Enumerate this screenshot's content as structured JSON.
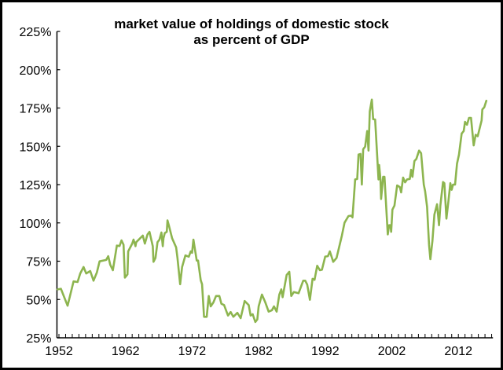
{
  "chart_data": {
    "type": "line",
    "title": "market value of holdings of domestic stock",
    "subtitle": "as percent of GDP",
    "xlabel": "",
    "ylabel": "",
    "xlim": [
      1951.7,
      2017.2
    ],
    "ylim": [
      25,
      225
    ],
    "x_ticks": [
      "1952",
      "1962",
      "1972",
      "1982",
      "1992",
      "2002",
      "2012"
    ],
    "y_ticks": [
      "25%",
      "50%",
      "75%",
      "100%",
      "125%",
      "150%",
      "175%",
      "200%",
      "225%"
    ],
    "grid": false,
    "line_color": "#8db54f",
    "series": [
      {
        "points": [
          [
            1951.8,
            56.6
          ],
          [
            1952.3,
            57.0
          ],
          [
            1953.3,
            45.9
          ],
          [
            1954.2,
            61.8
          ],
          [
            1954.8,
            61.4
          ],
          [
            1955.2,
            67.0
          ],
          [
            1955.7,
            71.2
          ],
          [
            1956.1,
            67.0
          ],
          [
            1956.7,
            68.6
          ],
          [
            1957.2,
            62.3
          ],
          [
            1957.7,
            67.7
          ],
          [
            1958.1,
            74.9
          ],
          [
            1959.1,
            75.8
          ],
          [
            1959.4,
            78.3
          ],
          [
            1959.7,
            72.8
          ],
          [
            1960.1,
            69.1
          ],
          [
            1960.7,
            85.2
          ],
          [
            1961.1,
            84.9
          ],
          [
            1961.4,
            88.6
          ],
          [
            1961.7,
            85.7
          ],
          [
            1961.9,
            64.3
          ],
          [
            1962.3,
            66.4
          ],
          [
            1962.4,
            81.4
          ],
          [
            1963.0,
            86.5
          ],
          [
            1963.2,
            89.1
          ],
          [
            1963.5,
            84.8
          ],
          [
            1963.6,
            87.4
          ],
          [
            1964.2,
            90.0
          ],
          [
            1964.6,
            91.7
          ],
          [
            1964.9,
            86.5
          ],
          [
            1965.3,
            92.5
          ],
          [
            1965.6,
            94.2
          ],
          [
            1966.1,
            84.8
          ],
          [
            1966.2,
            74.6
          ],
          [
            1966.5,
            77.1
          ],
          [
            1966.8,
            87.4
          ],
          [
            1967.1,
            89.1
          ],
          [
            1967.4,
            93.7
          ],
          [
            1967.6,
            84.8
          ],
          [
            1967.7,
            90.0
          ],
          [
            1967.9,
            93.4
          ],
          [
            1968.2,
            94.2
          ],
          [
            1968.3,
            101.6
          ],
          [
            1968.5,
            98.5
          ],
          [
            1969.0,
            90.0
          ],
          [
            1969.6,
            84.0
          ],
          [
            1969.8,
            77.1
          ],
          [
            1970.2,
            60.0
          ],
          [
            1970.5,
            71.2
          ],
          [
            1971.0,
            78.8
          ],
          [
            1971.5,
            77.9
          ],
          [
            1971.8,
            81.4
          ],
          [
            1972.0,
            80.5
          ],
          [
            1972.2,
            89.1
          ],
          [
            1972.7,
            75.4
          ],
          [
            1972.9,
            75.4
          ],
          [
            1973.3,
            62.6
          ],
          [
            1973.5,
            60.0
          ],
          [
            1973.8,
            38.7
          ],
          [
            1974.2,
            38.7
          ],
          [
            1974.5,
            52.3
          ],
          [
            1974.8,
            45.5
          ],
          [
            1975.2,
            48.1
          ],
          [
            1975.6,
            52.3
          ],
          [
            1976.1,
            52.3
          ],
          [
            1976.4,
            47.2
          ],
          [
            1976.8,
            46.4
          ],
          [
            1977.4,
            39.5
          ],
          [
            1977.8,
            41.8
          ],
          [
            1978.2,
            38.7
          ],
          [
            1978.8,
            41.3
          ],
          [
            1979.3,
            37.8
          ],
          [
            1979.9,
            49.0
          ],
          [
            1980.5,
            46.4
          ],
          [
            1980.8,
            39.5
          ],
          [
            1981.1,
            40.4
          ],
          [
            1981.5,
            35.3
          ],
          [
            1981.8,
            37.0
          ],
          [
            1982.0,
            45.5
          ],
          [
            1982.5,
            53.2
          ],
          [
            1983.0,
            48.1
          ],
          [
            1983.5,
            42.1
          ],
          [
            1984.0,
            43.0
          ],
          [
            1984.3,
            45.5
          ],
          [
            1984.7,
            42.1
          ],
          [
            1985.1,
            53.2
          ],
          [
            1985.4,
            56.6
          ],
          [
            1985.6,
            51.5
          ],
          [
            1986.2,
            66.0
          ],
          [
            1986.6,
            68.1
          ],
          [
            1986.9,
            52.3
          ],
          [
            1987.3,
            54.9
          ],
          [
            1988.0,
            54.1
          ],
          [
            1988.7,
            62.3
          ],
          [
            1989.0,
            62.3
          ],
          [
            1989.3,
            59.7
          ],
          [
            1989.7,
            49.8
          ],
          [
            1990.1,
            63.5
          ],
          [
            1990.4,
            62.8
          ],
          [
            1990.8,
            72.0
          ],
          [
            1991.2,
            69.1
          ],
          [
            1991.5,
            69.4
          ],
          [
            1992.0,
            78.0
          ],
          [
            1992.4,
            78.3
          ],
          [
            1992.7,
            81.4
          ],
          [
            1993.2,
            74.6
          ],
          [
            1993.7,
            77.1
          ],
          [
            1994.5,
            91.7
          ],
          [
            1994.9,
            100.2
          ],
          [
            1995.5,
            104.5
          ],
          [
            1995.9,
            104.7
          ],
          [
            1996.1,
            103.6
          ],
          [
            1996.5,
            128.4
          ],
          [
            1996.8,
            128.7
          ],
          [
            1997.0,
            144.6
          ],
          [
            1997.3,
            145.0
          ],
          [
            1997.5,
            125.0
          ],
          [
            1997.7,
            148.1
          ],
          [
            1998.0,
            149.8
          ],
          [
            1998.3,
            160.0
          ],
          [
            1998.5,
            147.2
          ],
          [
            1998.7,
            172.8
          ],
          [
            1999.0,
            180.5
          ],
          [
            1999.2,
            167.7
          ],
          [
            1999.5,
            167.5
          ],
          [
            2000.0,
            128.4
          ],
          [
            2000.1,
            137.8
          ],
          [
            2000.3,
            128.4
          ],
          [
            2000.4,
            115.6
          ],
          [
            2000.7,
            130.1
          ],
          [
            2000.9,
            130.1
          ],
          [
            2001.4,
            92.5
          ],
          [
            2001.6,
            98.5
          ],
          [
            2001.8,
            98.5
          ],
          [
            2001.9,
            94.2
          ],
          [
            2002.1,
            108.7
          ],
          [
            2002.4,
            111.3
          ],
          [
            2002.8,
            124.5
          ],
          [
            2003.2,
            123.4
          ],
          [
            2003.4,
            119.9
          ],
          [
            2003.7,
            129.6
          ],
          [
            2004.0,
            126.5
          ],
          [
            2004.3,
            128.4
          ],
          [
            2004.7,
            128.7
          ],
          [
            2004.9,
            134.7
          ],
          [
            2005.1,
            130.1
          ],
          [
            2005.4,
            140.4
          ],
          [
            2005.7,
            141.8
          ],
          [
            2006.1,
            147.2
          ],
          [
            2006.4,
            145.5
          ],
          [
            2006.8,
            125.0
          ],
          [
            2007.0,
            120.7
          ],
          [
            2007.3,
            110.5
          ],
          [
            2007.6,
            85.7
          ],
          [
            2007.8,
            76.3
          ],
          [
            2008.1,
            88.2
          ],
          [
            2008.4,
            105.4
          ],
          [
            2008.8,
            112.2
          ],
          [
            2009.1,
            98.5
          ],
          [
            2009.3,
            111.3
          ],
          [
            2009.7,
            126.7
          ],
          [
            2009.9,
            125.9
          ],
          [
            2010.2,
            102.8
          ],
          [
            2010.5,
            113.9
          ],
          [
            2010.8,
            125.9
          ],
          [
            2011.0,
            121.6
          ],
          [
            2011.2,
            125.0
          ],
          [
            2011.5,
            125.0
          ],
          [
            2011.8,
            138.7
          ],
          [
            2012.1,
            144.6
          ],
          [
            2012.5,
            158.3
          ],
          [
            2012.8,
            160.0
          ],
          [
            2013.0,
            166.0
          ],
          [
            2013.3,
            164.1
          ],
          [
            2013.6,
            168.6
          ],
          [
            2013.9,
            168.6
          ],
          [
            2014.3,
            150.6
          ],
          [
            2014.6,
            157.5
          ],
          [
            2014.9,
            156.6
          ],
          [
            2015.5,
            166.9
          ],
          [
            2015.6,
            174.0
          ],
          [
            2015.9,
            175.5
          ],
          [
            2016.2,
            179.7
          ]
        ]
      }
    ]
  }
}
